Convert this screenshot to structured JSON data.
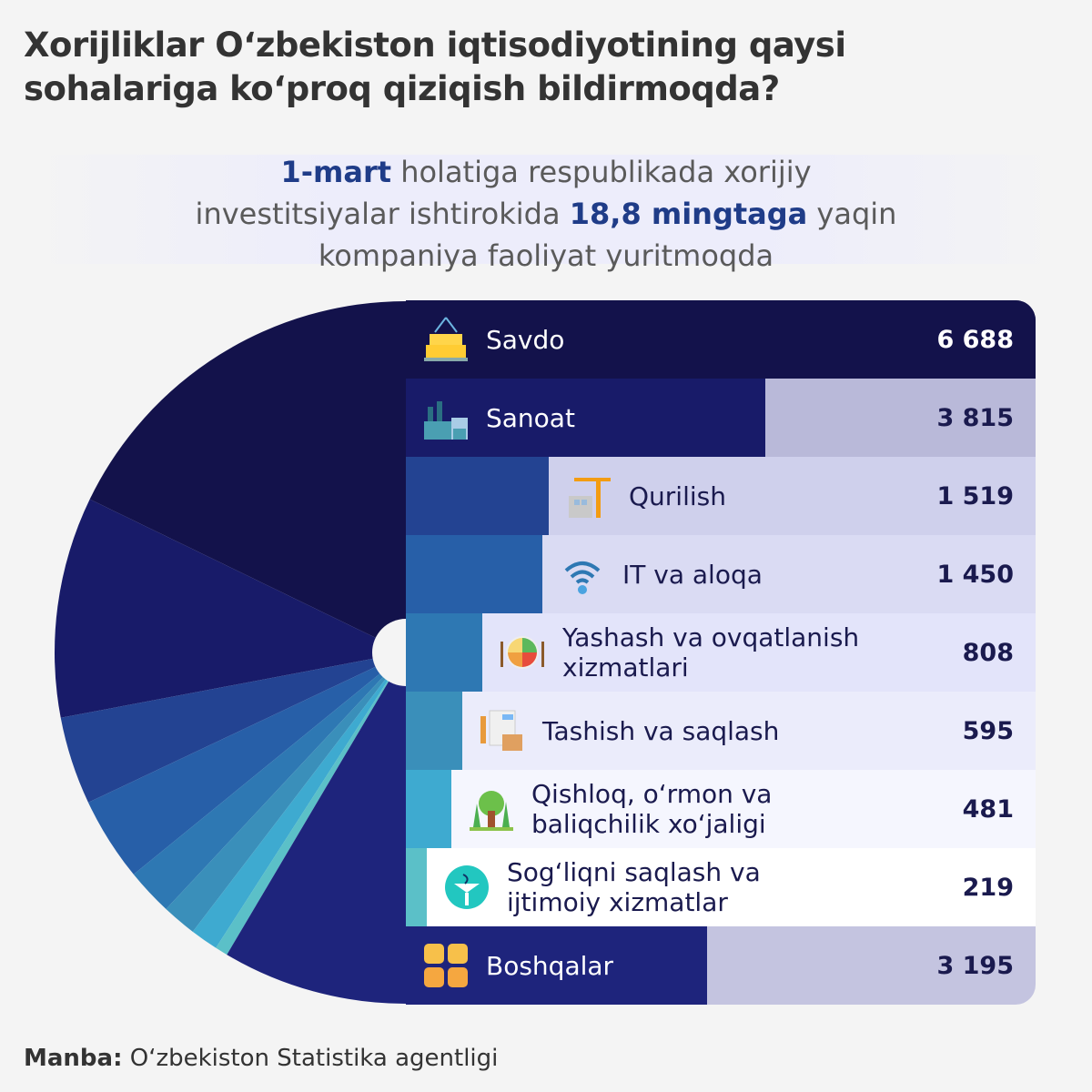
{
  "title": "Xorijliklar O‘zbekiston iqtisodiyotining qaysi sohalariga ko‘proq qiziqish bildirmoqda?",
  "subtitle": {
    "part1_bold": "1-mart",
    "part2": " holatiga respublikada xorijiy investitsiyalar ishtirokida ",
    "part3_bold": "18,8 mingtaga",
    "part4": " yaqin kompaniya faoliyat yuritmoqda"
  },
  "source": {
    "label": "Manba:",
    "text": " O‘zbekiston Statistika agentligi"
  },
  "chart_data": {
    "type": "bar",
    "secondary_type": "half-pie",
    "categories": [
      "Savdo",
      "Sanoat",
      "Qurilish",
      "IT va aloqa",
      "Yashash va ovqatlanish xizmatlari",
      "Tashish va saqlash",
      "Qishloq, o‘rmon va baliqchilik xo‘jaligi",
      "Sog‘liqni saqlash va ijtimoiy xizmatlar",
      "Boshqalar"
    ],
    "values": [
      6688,
      3815,
      1519,
      1450,
      808,
      595,
      481,
      219,
      3195
    ],
    "value_labels": [
      "6 688",
      "3 815",
      "1 519",
      "1 450",
      "808",
      "595",
      "481",
      "219",
      "3 195"
    ],
    "icons": [
      "boxes-icon",
      "factory-icon",
      "crane-icon",
      "wifi-icon",
      "food-plate-icon",
      "document-box-icon",
      "trees-icon",
      "medical-icon",
      "grid-icon"
    ],
    "colors": [
      "#13124b",
      "#181b69",
      "#234392",
      "#275fa8",
      "#2e78b3",
      "#3a8fba",
      "#3eaad0",
      "#5bc0c8",
      "#1e247c"
    ],
    "row_backgrounds": [
      "#13124b",
      "#b9b9d9",
      "#cfd0ec",
      "#dadbf3",
      "#e3e4fa",
      "#ebecfb",
      "#f5f6fe",
      "#ffffff",
      "#c4c4e0"
    ],
    "grid": false
  }
}
